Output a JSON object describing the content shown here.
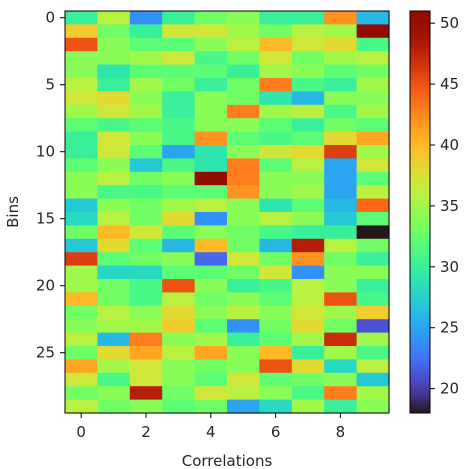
{
  "chart_data": {
    "type": "heatmap",
    "title": "",
    "xlabel": "Correlations",
    "ylabel": "Bins",
    "x_ticks": [
      "0",
      "2",
      "4",
      "6",
      "8"
    ],
    "y_ticks": [
      "0",
      "5",
      "10",
      "15",
      "20",
      "25"
    ],
    "colormap": "turbo",
    "vmin": 18,
    "vmax": 51,
    "colorbar_ticks": [
      "20",
      "25",
      "30",
      "35",
      "40",
      "45",
      "50"
    ],
    "n_cols": 10,
    "n_rows": 30,
    "values": [
      [
        30,
        36,
        24,
        30,
        33,
        34,
        30,
        30,
        42,
        26
      ],
      [
        39,
        33,
        30,
        37,
        37,
        35,
        33,
        36,
        35,
        51
      ],
      [
        45,
        34,
        32,
        32,
        34,
        36,
        40,
        37,
        38,
        31
      ],
      [
        34,
        34,
        35,
        37,
        31,
        33,
        37,
        33,
        35,
        36
      ],
      [
        34,
        29,
        32,
        32,
        32,
        30,
        35,
        34,
        32,
        33
      ],
      [
        36,
        30,
        35,
        33,
        30,
        33,
        43,
        31,
        30,
        35
      ],
      [
        37,
        38,
        34,
        30,
        34,
        33,
        29,
        26,
        34,
        34
      ],
      [
        35,
        37,
        35,
        30,
        34,
        43,
        35,
        36,
        31,
        35
      ],
      [
        32,
        31,
        32,
        31,
        34,
        34,
        32,
        30,
        33,
        32
      ],
      [
        30,
        37,
        34,
        31,
        42,
        32,
        31,
        32,
        38,
        41
      ],
      [
        30,
        37,
        32,
        25,
        29,
        34,
        37,
        38,
        46,
        35
      ],
      [
        32,
        34,
        27,
        31,
        29,
        43,
        32,
        36,
        25,
        37
      ],
      [
        34,
        36,
        33,
        34,
        51,
        43,
        34,
        34,
        25,
        32
      ],
      [
        34,
        31,
        31,
        32,
        32,
        42,
        34,
        35,
        25,
        36
      ],
      [
        27,
        34,
        33,
        35,
        36,
        34,
        29,
        32,
        26,
        44
      ],
      [
        28,
        36,
        33,
        38,
        24,
        34,
        36,
        34,
        27,
        32
      ],
      [
        33,
        40,
        37,
        32,
        34,
        33,
        31,
        30,
        30,
        18
      ],
      [
        27,
        38,
        32,
        26,
        40,
        33,
        26,
        48,
        36,
        33
      ],
      [
        46,
        32,
        33,
        34,
        22,
        37,
        33,
        42,
        33,
        30
      ],
      [
        35,
        28,
        28,
        32,
        32,
        33,
        37,
        24,
        34,
        34
      ],
      [
        35,
        33,
        31,
        45,
        34,
        30,
        31,
        36,
        34,
        30
      ],
      [
        40,
        33,
        31,
        36,
        33,
        34,
        32,
        36,
        45,
        31
      ],
      [
        33,
        36,
        34,
        38,
        34,
        36,
        34,
        37,
        35,
        39
      ],
      [
        34,
        35,
        35,
        39,
        32,
        24,
        33,
        38,
        33,
        21
      ],
      [
        36,
        26,
        43,
        34,
        35,
        30,
        32,
        35,
        47,
        35
      ],
      [
        33,
        38,
        41,
        36,
        41,
        34,
        40,
        30,
        35,
        31
      ],
      [
        41,
        35,
        37,
        34,
        33,
        34,
        45,
        38,
        28,
        36
      ],
      [
        37,
        31,
        37,
        34,
        32,
        37,
        32,
        33,
        34,
        27
      ],
      [
        33,
        34,
        48,
        33,
        37,
        36,
        34,
        31,
        43,
        35
      ],
      [
        36,
        33,
        34,
        32,
        33,
        25,
        28,
        35,
        30,
        34
      ]
    ]
  }
}
